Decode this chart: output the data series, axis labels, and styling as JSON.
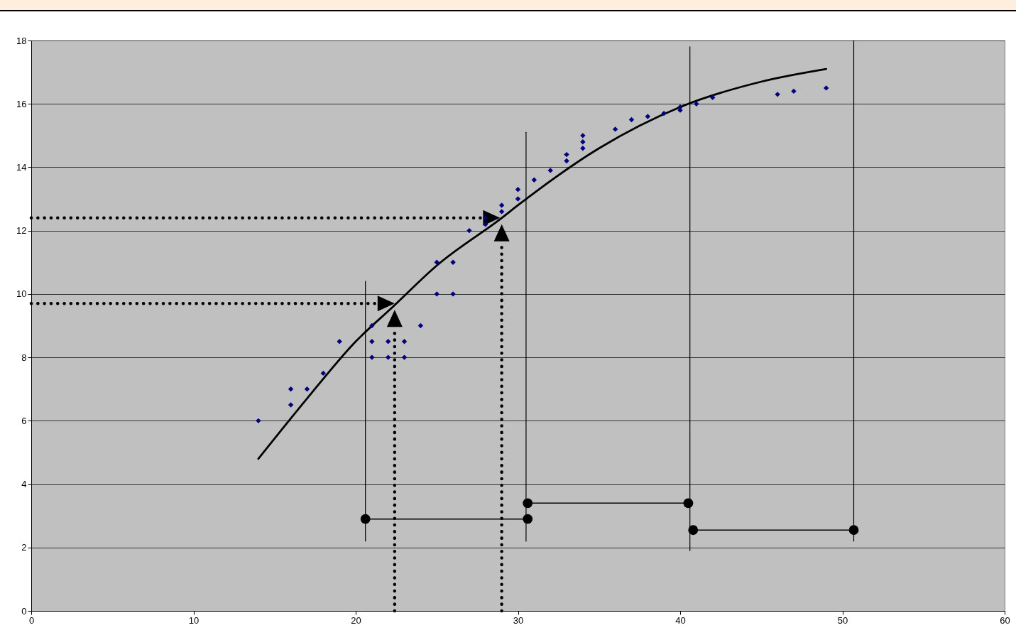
{
  "chart_data": {
    "type": "scatter",
    "xlim": [
      0,
      60
    ],
    "xticks": [
      0,
      10,
      20,
      30,
      40,
      50,
      60
    ],
    "ylim": [
      0,
      18
    ],
    "yticks": [
      0,
      2,
      4,
      6,
      8,
      10,
      12,
      14,
      16,
      18
    ],
    "grid": "y",
    "legend": false,
    "series": [
      {
        "color": "#000080",
        "marker": "diamond",
        "x": [
          14,
          16,
          16,
          17,
          18,
          19,
          21,
          21,
          21,
          22,
          22,
          23,
          23,
          24,
          25,
          25,
          26,
          26,
          27,
          28,
          28,
          29,
          29,
          30,
          30,
          31,
          32,
          33,
          33,
          34,
          34,
          34,
          36,
          37,
          38,
          39,
          40,
          40,
          41,
          42,
          46,
          47,
          49
        ],
        "values": [
          6,
          7,
          6.5,
          7,
          7.5,
          8.5,
          9,
          8.5,
          8,
          8.5,
          8,
          8.5,
          8,
          9,
          11,
          10,
          11,
          10,
          12,
          12.2,
          12.4,
          12.8,
          12.6,
          13.3,
          13,
          13.6,
          13.9,
          14.4,
          14.2,
          15,
          14.8,
          14.6,
          15.2,
          15.5,
          15.6,
          15.7,
          15.9,
          15.8,
          16,
          16.2,
          16.3,
          16.4,
          16.5
        ]
      },
      {
        "type": "line",
        "color": "#000000",
        "line_style": "solid",
        "x": [
          14,
          17,
          20,
          22.3,
          25,
          29,
          30,
          35,
          40,
          45,
          49
        ],
        "values": [
          4.8,
          6.7,
          8.5,
          9.6,
          10.9,
          12.4,
          12.8,
          14.6,
          15.9,
          16.7,
          17.1
        ]
      },
      {
        "type": "line",
        "color": "#000000",
        "line_style": "solid",
        "x": [
          20.6,
          20.6
        ],
        "values": [
          2.2,
          10.4
        ]
      },
      {
        "type": "line",
        "color": "#000000",
        "line_style": "solid",
        "x": [
          30.5,
          30.5
        ],
        "values": [
          2.2,
          15.1
        ]
      },
      {
        "type": "line",
        "color": "#000000",
        "line_style": "solid",
        "x": [
          40.6,
          40.6
        ],
        "values": [
          1.9,
          17.8
        ]
      },
      {
        "type": "line",
        "color": "#000000",
        "line_style": "solid",
        "x": [
          50.7,
          50.7
        ],
        "values": [
          2.2,
          18
        ]
      },
      {
        "type": "line",
        "color": "#000000",
        "line_style": "solid",
        "marker": "circle",
        "x": [
          20.6,
          30.6
        ],
        "values": [
          2.9,
          2.9
        ]
      },
      {
        "type": "line",
        "color": "#000000",
        "line_style": "solid",
        "marker": "circle",
        "x": [
          30.6,
          40.5
        ],
        "values": [
          3.4,
          3.4
        ]
      },
      {
        "type": "line",
        "color": "#000000",
        "line_style": "solid",
        "marker": "circle",
        "x": [
          40.8,
          50.7
        ],
        "values": [
          2.55,
          2.55
        ]
      }
    ]
  }
}
